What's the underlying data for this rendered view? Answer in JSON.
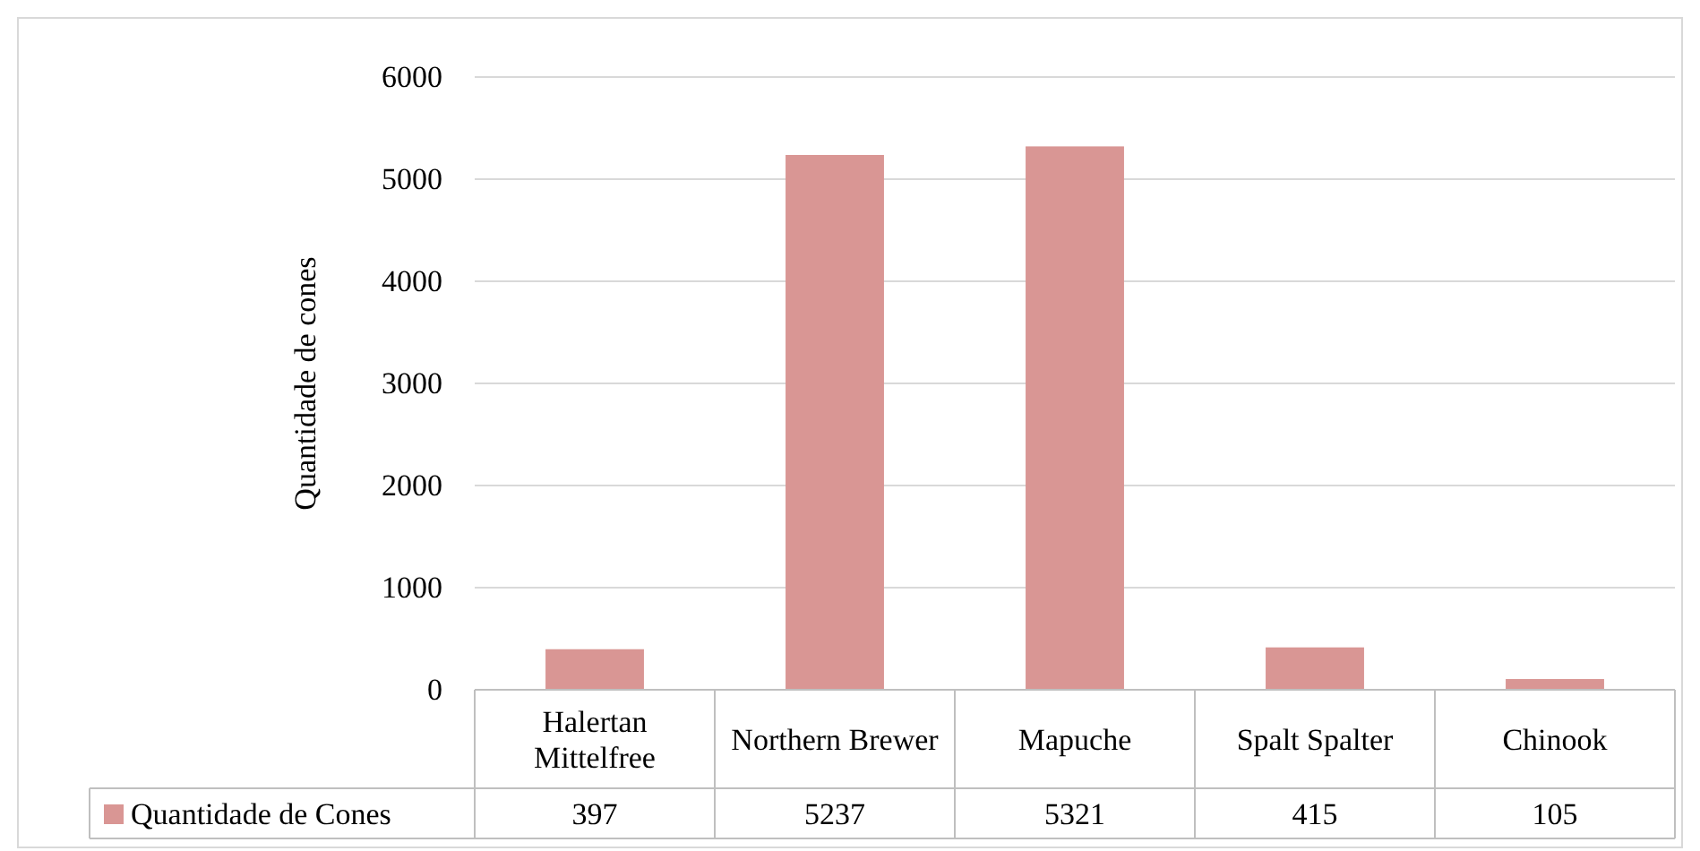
{
  "chart_data": {
    "type": "bar",
    "ylabel": "Quantidade de cones",
    "categories": [
      "Halertan Mittelfree",
      "Northern Brewer",
      "Mapuche",
      "Spalt Spalter",
      "Chinook"
    ],
    "series": [
      {
        "name": "Quantidade de Cones",
        "color": "#d99694",
        "values": [
          397,
          5237,
          5321,
          415,
          105
        ]
      }
    ],
    "ylim": [
      0,
      6000
    ],
    "yticks": [
      0,
      1000,
      2000,
      3000,
      4000,
      5000,
      6000
    ],
    "grid": "y",
    "legend": "bottom",
    "data_labels": true
  }
}
